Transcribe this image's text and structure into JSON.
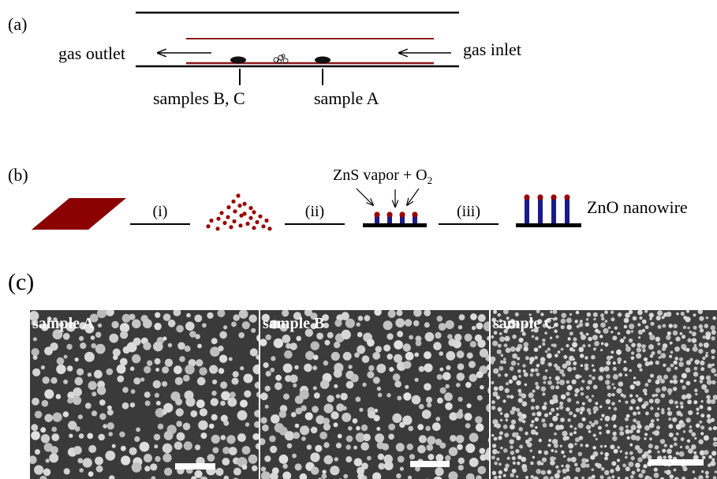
{
  "panel_a": {
    "label": "(a)",
    "gas_outlet": "gas outlet",
    "gas_inlet": "gas inlet",
    "samples_bc": "samples B, C",
    "sample_a": "sample A"
  },
  "panel_b": {
    "label": "(b)",
    "step1": "(i)",
    "step2": "(ii)",
    "step3": "(iii)",
    "vapor_text": "ZnS vapor + O",
    "vapor_sub": "2",
    "nanowire": "ZnO nanowire"
  },
  "panel_c": {
    "label": "(c)",
    "images": [
      {
        "label": "sample A"
      },
      {
        "label": "sample B"
      },
      {
        "label": "sample C"
      }
    ]
  },
  "colors": {
    "tube_line": "#000000",
    "inner_tube": "#8b1a1a",
    "substrate": "#8b0000",
    "nanowire": "#1a1a8c",
    "catalyst": "#9b0000",
    "sem_background": "#3a3a3a",
    "sem_particle": "#c8c8c8",
    "scale_bar": "#ffffff"
  },
  "icons": {
    "boat": "sample-boat-icon",
    "powder": "zns-powder-icon",
    "arrow": "flow-arrow-icon"
  }
}
